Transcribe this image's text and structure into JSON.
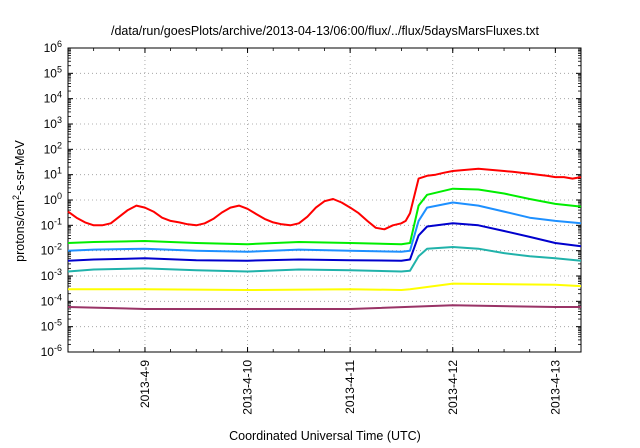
{
  "chart_data": {
    "type": "line",
    "title": "/data/run/goesPlots/archive/2013-04-13/06:00/flux/../flux/5daysMarsFluxes.txt",
    "xlabel": "Coordinated Universal Time (UTC)",
    "ylabel": {
      "prefix": "protons/cm",
      "sup": "2",
      "suffix": "-s-sr-MeV"
    },
    "y_scale": "log",
    "ylim": [
      1e-06,
      1000000.0
    ],
    "y_ticks": [
      {
        "value": 1e-06,
        "base": "10",
        "exp": "-6"
      },
      {
        "value": 1e-05,
        "base": "10",
        "exp": "-5"
      },
      {
        "value": 0.0001,
        "base": "10",
        "exp": "-4"
      },
      {
        "value": 0.001,
        "base": "10",
        "exp": "-3"
      },
      {
        "value": 0.01,
        "base": "10",
        "exp": "-2"
      },
      {
        "value": 0.1,
        "base": "10",
        "exp": "-1"
      },
      {
        "value": 1,
        "base": "10",
        "exp": "0"
      },
      {
        "value": 10,
        "base": "10",
        "exp": "1"
      },
      {
        "value": 100,
        "base": "10",
        "exp": "2"
      },
      {
        "value": 1000,
        "base": "10",
        "exp": "3"
      },
      {
        "value": 10000,
        "base": "10",
        "exp": "4"
      },
      {
        "value": 100000,
        "base": "10",
        "exp": "5"
      },
      {
        "value": 1000000,
        "base": "10",
        "exp": "6"
      }
    ],
    "x_range": [
      "2013-04-08 06:00",
      "2013-04-13 06:00"
    ],
    "x_ticks": [
      {
        "date": "2013-04-09 00:00",
        "label": "2013-4-9"
      },
      {
        "date": "2013-04-10 00:00",
        "label": "2013-4-10"
      },
      {
        "date": "2013-04-11 00:00",
        "label": "2013-4-11"
      },
      {
        "date": "2013-04-12 00:00",
        "label": "2013-4-12"
      },
      {
        "date": "2013-04-13 00:00",
        "label": "2013-4-13"
      }
    ],
    "grid": true,
    "legend": "none",
    "series": [
      {
        "color": "#ff0000",
        "x": [
          "2013-04-08 06:00",
          "2013-04-08 08:00",
          "2013-04-08 10:00",
          "2013-04-08 12:00",
          "2013-04-08 14:00",
          "2013-04-08 16:00",
          "2013-04-08 18:00",
          "2013-04-08 20:00",
          "2013-04-08 22:00",
          "2013-04-09 00:00",
          "2013-04-09 02:00",
          "2013-04-09 04:00",
          "2013-04-09 06:00",
          "2013-04-09 08:00",
          "2013-04-09 10:00",
          "2013-04-09 12:00",
          "2013-04-09 14:00",
          "2013-04-09 16:00",
          "2013-04-09 18:00",
          "2013-04-09 20:00",
          "2013-04-09 22:00",
          "2013-04-10 00:00",
          "2013-04-10 02:00",
          "2013-04-10 04:00",
          "2013-04-10 06:00",
          "2013-04-10 08:00",
          "2013-04-10 10:00",
          "2013-04-10 12:00",
          "2013-04-10 14:00",
          "2013-04-10 16:00",
          "2013-04-10 18:00",
          "2013-04-10 20:00",
          "2013-04-10 22:00",
          "2013-04-11 00:00",
          "2013-04-11 02:00",
          "2013-04-11 04:00",
          "2013-04-11 06:00",
          "2013-04-11 08:00",
          "2013-04-11 10:00",
          "2013-04-11 12:00",
          "2013-04-11 13:00",
          "2013-04-11 14:00",
          "2013-04-11 16:00",
          "2013-04-11 18:00",
          "2013-04-11 20:00",
          "2013-04-11 22:00",
          "2013-04-12 00:00",
          "2013-04-12 02:00",
          "2013-04-12 04:00",
          "2013-04-12 06:00",
          "2013-04-12 08:00",
          "2013-04-12 10:00",
          "2013-04-12 12:00",
          "2013-04-12 14:00",
          "2013-04-12 16:00",
          "2013-04-12 18:00",
          "2013-04-12 20:00",
          "2013-04-12 22:00",
          "2013-04-13 00:00",
          "2013-04-13 02:00",
          "2013-04-13 04:00",
          "2013-04-13 06:00"
        ],
        "y": [
          0.35,
          0.2,
          0.13,
          0.1,
          0.1,
          0.12,
          0.22,
          0.4,
          0.6,
          0.5,
          0.35,
          0.2,
          0.15,
          0.13,
          0.11,
          0.1,
          0.12,
          0.18,
          0.32,
          0.5,
          0.6,
          0.45,
          0.28,
          0.18,
          0.13,
          0.11,
          0.1,
          0.12,
          0.22,
          0.5,
          0.9,
          1.1,
          0.8,
          0.5,
          0.3,
          0.15,
          0.08,
          0.07,
          0.1,
          0.12,
          0.15,
          0.3,
          7,
          9,
          10,
          12,
          14,
          15,
          16,
          17,
          16,
          15,
          14,
          13,
          12,
          11,
          10,
          9,
          8,
          8,
          7,
          8
        ]
      },
      {
        "color": "#00ee00",
        "x": [
          "2013-04-08 06:00",
          "2013-04-08 12:00",
          "2013-04-09 00:00",
          "2013-04-09 12:00",
          "2013-04-10 00:00",
          "2013-04-10 12:00",
          "2013-04-11 00:00",
          "2013-04-11 12:00",
          "2013-04-11 14:00",
          "2013-04-11 16:00",
          "2013-04-11 18:00",
          "2013-04-12 00:00",
          "2013-04-12 06:00",
          "2013-04-12 12:00",
          "2013-04-12 18:00",
          "2013-04-13 00:00",
          "2013-04-13 06:00"
        ],
        "y": [
          0.02,
          0.022,
          0.024,
          0.02,
          0.018,
          0.022,
          0.02,
          0.018,
          0.02,
          0.6,
          1.6,
          2.8,
          2.6,
          1.8,
          1.1,
          0.7,
          0.55
        ]
      },
      {
        "color": "#1e90ff",
        "x": [
          "2013-04-08 06:00",
          "2013-04-08 12:00",
          "2013-04-09 00:00",
          "2013-04-09 12:00",
          "2013-04-10 00:00",
          "2013-04-10 12:00",
          "2013-04-11 00:00",
          "2013-04-11 12:00",
          "2013-04-11 14:00",
          "2013-04-11 16:00",
          "2013-04-11 18:00",
          "2013-04-12 00:00",
          "2013-04-12 06:00",
          "2013-04-12 12:00",
          "2013-04-12 18:00",
          "2013-04-13 00:00",
          "2013-04-13 06:00"
        ],
        "y": [
          0.01,
          0.011,
          0.012,
          0.01,
          0.009,
          0.011,
          0.01,
          0.009,
          0.01,
          0.15,
          0.5,
          0.8,
          0.6,
          0.35,
          0.2,
          0.15,
          0.12
        ]
      },
      {
        "color": "#0000cd",
        "x": [
          "2013-04-08 06:00",
          "2013-04-08 12:00",
          "2013-04-09 00:00",
          "2013-04-09 12:00",
          "2013-04-10 00:00",
          "2013-04-10 12:00",
          "2013-04-11 00:00",
          "2013-04-11 12:00",
          "2013-04-11 14:00",
          "2013-04-11 16:00",
          "2013-04-11 18:00",
          "2013-04-12 00:00",
          "2013-04-12 06:00",
          "2013-04-12 12:00",
          "2013-04-12 18:00",
          "2013-04-13 00:00",
          "2013-04-13 06:00"
        ],
        "y": [
          0.004,
          0.0045,
          0.005,
          0.0042,
          0.004,
          0.0045,
          0.0042,
          0.004,
          0.0045,
          0.04,
          0.09,
          0.12,
          0.1,
          0.06,
          0.035,
          0.02,
          0.015
        ]
      },
      {
        "color": "#20b2aa",
        "x": [
          "2013-04-08 06:00",
          "2013-04-08 12:00",
          "2013-04-09 00:00",
          "2013-04-09 12:00",
          "2013-04-10 00:00",
          "2013-04-10 12:00",
          "2013-04-11 00:00",
          "2013-04-11 12:00",
          "2013-04-11 14:00",
          "2013-04-11 16:00",
          "2013-04-11 18:00",
          "2013-04-12 00:00",
          "2013-04-12 06:00",
          "2013-04-12 12:00",
          "2013-04-12 18:00",
          "2013-04-13 00:00",
          "2013-04-13 06:00"
        ],
        "y": [
          0.0015,
          0.0018,
          0.002,
          0.0017,
          0.0015,
          0.0018,
          0.0017,
          0.0015,
          0.0016,
          0.006,
          0.012,
          0.014,
          0.012,
          0.008,
          0.006,
          0.005,
          0.004
        ]
      },
      {
        "color": "#ffff00",
        "x": [
          "2013-04-08 06:00",
          "2013-04-09 00:00",
          "2013-04-10 00:00",
          "2013-04-11 00:00",
          "2013-04-11 12:00",
          "2013-04-11 14:00",
          "2013-04-12 00:00",
          "2013-04-13 00:00",
          "2013-04-13 06:00"
        ],
        "y": [
          0.0003,
          0.0003,
          0.00028,
          0.0003,
          0.00028,
          0.0003,
          0.0005,
          0.00045,
          0.0004
        ]
      },
      {
        "color": "#993366",
        "x": [
          "2013-04-08 06:00",
          "2013-04-09 00:00",
          "2013-04-10 00:00",
          "2013-04-11 00:00",
          "2013-04-12 00:00",
          "2013-04-13 00:00",
          "2013-04-13 06:00"
        ],
        "y": [
          6e-05,
          5e-05,
          5e-05,
          5e-05,
          7e-05,
          6e-05,
          6e-05
        ]
      }
    ]
  }
}
